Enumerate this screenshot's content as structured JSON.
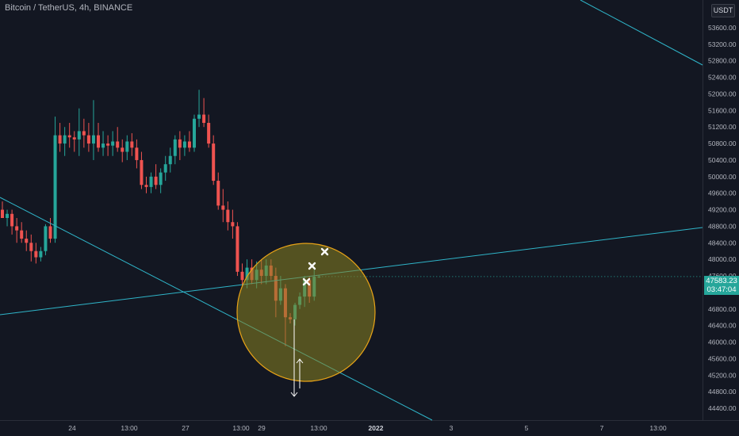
{
  "header": {
    "symbol_title": "Bitcoin / TetherUS, 4h, BINANCE",
    "currency_button": "USDT"
  },
  "last_price": {
    "value": "47583.23",
    "countdown": "03:47:04"
  },
  "colors": {
    "background": "#131722",
    "up": "#26a69a",
    "down": "#ef5350",
    "trendline": "#2fb5c9",
    "highlight_fill": "#8a8420",
    "highlight_stroke": "#e8a317",
    "annotation": "#ffffff"
  },
  "chart_data": {
    "type": "candlestick",
    "timeframe": "4h",
    "x_ticks": [
      "24",
      "13:00",
      "27",
      "13:00",
      "29",
      "13:00",
      "2022",
      "3",
      "5",
      "7",
      "13:00"
    ],
    "y_ticks": [
      "53600.00",
      "53200.00",
      "52800.00",
      "52400.00",
      "52000.00",
      "51600.00",
      "51200.00",
      "50800.00",
      "50400.00",
      "50000.00",
      "49600.00",
      "49200.00",
      "48800.00",
      "48400.00",
      "48000.00",
      "47600.00",
      "47200.00",
      "46800.00",
      "46400.00",
      "46000.00",
      "45600.00",
      "45200.00",
      "44800.00",
      "44400.00"
    ],
    "y_range": [
      44250,
      54000
    ],
    "candles": [
      {
        "o": 49200,
        "h": 49400,
        "l": 49000,
        "c": 49000
      },
      {
        "o": 49000,
        "h": 49200,
        "l": 48800,
        "c": 49100
      },
      {
        "o": 49100,
        "h": 49200,
        "l": 48600,
        "c": 48800
      },
      {
        "o": 48800,
        "h": 49000,
        "l": 48400,
        "c": 48700
      },
      {
        "o": 48700,
        "h": 48900,
        "l": 48400,
        "c": 48500
      },
      {
        "o": 48500,
        "h": 48700,
        "l": 48200,
        "c": 48400
      },
      {
        "o": 48400,
        "h": 48600,
        "l": 47950,
        "c": 48200
      },
      {
        "o": 48200,
        "h": 48400,
        "l": 47900,
        "c": 48050
      },
      {
        "o": 48050,
        "h": 48300,
        "l": 47950,
        "c": 48200
      },
      {
        "o": 48200,
        "h": 48850,
        "l": 48100,
        "c": 48800
      },
      {
        "o": 48800,
        "h": 49000,
        "l": 48400,
        "c": 48500
      },
      {
        "o": 48500,
        "h": 51450,
        "l": 48400,
        "c": 51000
      },
      {
        "o": 51000,
        "h": 51300,
        "l": 50600,
        "c": 50800
      },
      {
        "o": 50800,
        "h": 51200,
        "l": 50500,
        "c": 51000
      },
      {
        "o": 51000,
        "h": 51300,
        "l": 50700,
        "c": 50950
      },
      {
        "o": 50950,
        "h": 51100,
        "l": 50600,
        "c": 50900
      },
      {
        "o": 50900,
        "h": 51650,
        "l": 50500,
        "c": 51100
      },
      {
        "o": 51100,
        "h": 51400,
        "l": 50700,
        "c": 51000
      },
      {
        "o": 51000,
        "h": 51300,
        "l": 50600,
        "c": 50800
      },
      {
        "o": 50800,
        "h": 51850,
        "l": 50400,
        "c": 51000
      },
      {
        "o": 51000,
        "h": 51300,
        "l": 50600,
        "c": 50700
      },
      {
        "o": 50700,
        "h": 51100,
        "l": 50500,
        "c": 50800
      },
      {
        "o": 50800,
        "h": 51000,
        "l": 50500,
        "c": 50750
      },
      {
        "o": 50750,
        "h": 51100,
        "l": 50500,
        "c": 50850
      },
      {
        "o": 50850,
        "h": 51200,
        "l": 50600,
        "c": 50700
      },
      {
        "o": 50700,
        "h": 50900,
        "l": 50350,
        "c": 50600
      },
      {
        "o": 50600,
        "h": 51000,
        "l": 50400,
        "c": 50850
      },
      {
        "o": 50850,
        "h": 51050,
        "l": 50500,
        "c": 50700
      },
      {
        "o": 50700,
        "h": 50900,
        "l": 50200,
        "c": 50400
      },
      {
        "o": 50400,
        "h": 50600,
        "l": 49700,
        "c": 49800
      },
      {
        "o": 49800,
        "h": 50000,
        "l": 49600,
        "c": 49750
      },
      {
        "o": 49750,
        "h": 50100,
        "l": 49600,
        "c": 50000
      },
      {
        "o": 50000,
        "h": 50300,
        "l": 49700,
        "c": 49800
      },
      {
        "o": 49800,
        "h": 50200,
        "l": 49600,
        "c": 50100
      },
      {
        "o": 50100,
        "h": 50500,
        "l": 49900,
        "c": 50300
      },
      {
        "o": 50300,
        "h": 50700,
        "l": 50100,
        "c": 50500
      },
      {
        "o": 50500,
        "h": 51000,
        "l": 50300,
        "c": 50900
      },
      {
        "o": 50900,
        "h": 51100,
        "l": 50400,
        "c": 50700
      },
      {
        "o": 50700,
        "h": 51000,
        "l": 50500,
        "c": 50850
      },
      {
        "o": 50850,
        "h": 51100,
        "l": 50600,
        "c": 50700
      },
      {
        "o": 50700,
        "h": 51500,
        "l": 50600,
        "c": 51400
      },
      {
        "o": 51400,
        "h": 52100,
        "l": 51200,
        "c": 51500
      },
      {
        "o": 51500,
        "h": 51900,
        "l": 51200,
        "c": 51300
      },
      {
        "o": 51300,
        "h": 51500,
        "l": 50700,
        "c": 50800
      },
      {
        "o": 50800,
        "h": 51000,
        "l": 49800,
        "c": 49900
      },
      {
        "o": 49900,
        "h": 50100,
        "l": 49200,
        "c": 49300
      },
      {
        "o": 49300,
        "h": 49700,
        "l": 48900,
        "c": 49200
      },
      {
        "o": 49200,
        "h": 49400,
        "l": 48700,
        "c": 48900
      },
      {
        "o": 48900,
        "h": 49200,
        "l": 48500,
        "c": 48800
      },
      {
        "o": 48800,
        "h": 48900,
        "l": 47600,
        "c": 47700
      },
      {
        "o": 47700,
        "h": 47900,
        "l": 47350,
        "c": 47500
      },
      {
        "o": 47500,
        "h": 48000,
        "l": 47300,
        "c": 47800
      },
      {
        "o": 47800,
        "h": 48000,
        "l": 47400,
        "c": 47500
      },
      {
        "o": 47500,
        "h": 47950,
        "l": 47300,
        "c": 47750
      },
      {
        "o": 47750,
        "h": 48000,
        "l": 47400,
        "c": 47600
      },
      {
        "o": 47600,
        "h": 48000,
        "l": 47400,
        "c": 47850
      },
      {
        "o": 47850,
        "h": 48000,
        "l": 47500,
        "c": 47600
      },
      {
        "o": 47600,
        "h": 47800,
        "l": 46600,
        "c": 47000
      },
      {
        "o": 47000,
        "h": 47600,
        "l": 46900,
        "c": 47300
      },
      {
        "o": 47300,
        "h": 47400,
        "l": 45900,
        "c": 46600
      },
      {
        "o": 46600,
        "h": 46700,
        "l": 46450,
        "c": 46550
      },
      {
        "o": 46550,
        "h": 46950,
        "l": 46400,
        "c": 46900
      },
      {
        "o": 46900,
        "h": 47200,
        "l": 46800,
        "c": 47100
      },
      {
        "o": 47100,
        "h": 47600,
        "l": 46850,
        "c": 47500
      },
      {
        "o": 47500,
        "h": 47600,
        "l": 46950,
        "c": 47100
      },
      {
        "o": 47100,
        "h": 47750,
        "l": 47000,
        "c": 47580
      },
      {
        "o": 47580,
        "h": 47620,
        "l": 47550,
        "c": 47583
      }
    ],
    "annotations": {
      "trendlines": 3,
      "highlight_circle": true,
      "x_markers": 3,
      "arrows": [
        "down",
        "up"
      ]
    }
  }
}
